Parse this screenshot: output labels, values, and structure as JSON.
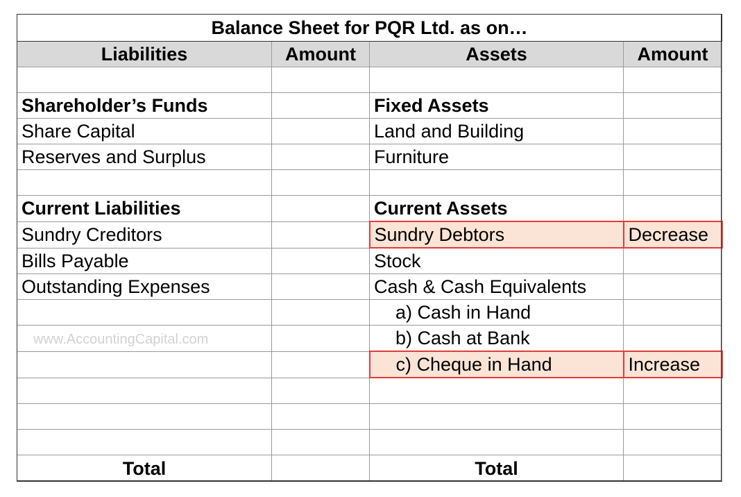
{
  "title": "Balance Sheet for PQR Ltd. as on…",
  "headers": {
    "liabilities": "Liabilities",
    "amount_left": "Amount",
    "assets": "Assets",
    "amount_right": "Amount"
  },
  "rows": [
    {
      "liability": "",
      "l_amount": "",
      "asset": "",
      "a_amount": ""
    },
    {
      "liability": "Shareholder’s Funds",
      "l_amount": "",
      "asset": "Fixed Assets",
      "a_amount": ""
    },
    {
      "liability": "Share Capital",
      "l_amount": "",
      "asset": "Land and Building",
      "a_amount": ""
    },
    {
      "liability": "Reserves and Surplus",
      "l_amount": "",
      "asset": "Furniture",
      "a_amount": ""
    },
    {
      "liability": "",
      "l_amount": "",
      "asset": "",
      "a_amount": ""
    },
    {
      "liability": "Current Liabilities",
      "l_amount": "",
      "asset": "Current Assets",
      "a_amount": ""
    },
    {
      "liability": "Sundry Creditors",
      "l_amount": "",
      "asset": "Sundry Debtors",
      "a_amount": "Decrease"
    },
    {
      "liability": "Bills Payable",
      "l_amount": "",
      "asset": "Stock",
      "a_amount": ""
    },
    {
      "liability": "Outstanding Expenses",
      "l_amount": "",
      "asset": "Cash & Cash Equivalents",
      "a_amount": ""
    },
    {
      "liability": "",
      "l_amount": "",
      "asset": "a) Cash in Hand",
      "a_amount": ""
    },
    {
      "liability": "",
      "l_amount": "",
      "asset": "b) Cash at Bank",
      "a_amount": ""
    },
    {
      "liability": "",
      "l_amount": "",
      "asset": "c) Cheque in Hand",
      "a_amount": "Increase"
    },
    {
      "liability": "",
      "l_amount": "",
      "asset": "",
      "a_amount": ""
    },
    {
      "liability": "",
      "l_amount": "",
      "asset": "",
      "a_amount": ""
    },
    {
      "liability": "",
      "l_amount": "",
      "asset": "",
      "a_amount": ""
    }
  ],
  "totals": {
    "left_label": "Total",
    "right_label": "Total"
  },
  "watermark": "www.AccountingCapital.com",
  "colors": {
    "header_bg": "#d9d9d9",
    "highlight_bg": "#fbe4d6",
    "highlight_border": "#e23b3b",
    "watermark": "#d2d2d2"
  }
}
